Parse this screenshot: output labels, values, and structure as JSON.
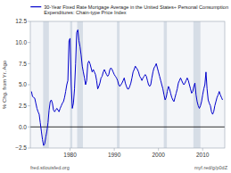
{
  "chart_data": {
    "type": "line",
    "ylabel": "% Chg. from Yr. Ago",
    "legend": "upper-right",
    "grid": false,
    "xlim": [
      1971,
      2015
    ],
    "xticks": [
      1980,
      1990,
      2000,
      2010
    ],
    "ylim": [
      -2.5,
      12.5
    ],
    "yticks": [
      {
        "value": -2.5,
        "label": "−2.5"
      },
      {
        "value": 0.0,
        "label": "0.0"
      },
      2.5,
      {
        "value": 5.0,
        "label": "5.0"
      },
      7.5,
      {
        "value": 10.0,
        "label": "10.0"
      },
      12.5
    ],
    "hlines": [
      0
    ],
    "recession_bands": [
      [
        1973.9,
        1975.2
      ],
      [
        1980.0,
        1980.5
      ],
      [
        1981.6,
        1982.9
      ],
      [
        1990.6,
        1991.2
      ],
      [
        2001.2,
        2001.9
      ],
      [
        2007.9,
        2009.5
      ]
    ],
    "annotations": [
      "fred.stlouisfed.org",
      "myf.red/g/p0dZ"
    ],
    "x": [
      1971.25,
      1971.5,
      1971.75,
      1972.0,
      1972.25,
      1972.5,
      1972.75,
      1973.0,
      1973.25,
      1973.5,
      1973.75,
      1974.0,
      1974.25,
      1974.5,
      1974.75,
      1975.0,
      1975.25,
      1975.5,
      1975.75,
      1976.0,
      1976.25,
      1976.5,
      1976.75,
      1977.0,
      1977.25,
      1977.5,
      1977.75,
      1978.0,
      1978.25,
      1978.5,
      1978.75,
      1979.0,
      1979.25,
      1979.5,
      1979.75,
      1980.0,
      1980.25,
      1980.5,
      1980.75,
      1981.0,
      1981.25,
      1981.5,
      1981.75,
      1982.0,
      1982.25,
      1982.5,
      1982.75,
      1983.0,
      1983.25,
      1983.5,
      1983.75,
      1984.0,
      1984.25,
      1984.5,
      1984.75,
      1985.0,
      1985.25,
      1985.5,
      1985.75,
      1986.0,
      1986.25,
      1986.5,
      1986.75,
      1987.0,
      1987.25,
      1987.5,
      1987.75,
      1988.0,
      1988.25,
      1988.5,
      1988.75,
      1989.0,
      1989.25,
      1989.5,
      1989.75,
      1990.0,
      1990.25,
      1990.5,
      1990.75,
      1991.0,
      1991.25,
      1991.5,
      1991.75,
      1992.0,
      1992.25,
      1992.5,
      1992.75,
      1993.0,
      1993.25,
      1993.5,
      1993.75,
      1994.0,
      1994.25,
      1994.5,
      1994.75,
      1995.0,
      1995.25,
      1995.5,
      1995.75,
      1996.0,
      1996.25,
      1996.5,
      1996.75,
      1997.0,
      1997.25,
      1997.5,
      1997.75,
      1998.0,
      1998.25,
      1998.5,
      1998.75,
      1999.0,
      1999.25,
      1999.5,
      1999.75,
      2000.0,
      2000.25,
      2000.5,
      2000.75,
      2001.0,
      2001.25,
      2001.5,
      2001.75,
      2002.0,
      2002.25,
      2002.5,
      2002.75,
      2003.0,
      2003.25,
      2003.5,
      2003.75,
      2004.0,
      2004.25,
      2004.5,
      2004.75,
      2005.0,
      2005.25,
      2005.5,
      2005.75,
      2006.0,
      2006.25,
      2006.5,
      2006.75,
      2007.0,
      2007.25,
      2007.5,
      2007.75,
      2008.0,
      2008.25,
      2008.5,
      2008.75,
      2009.0,
      2009.25,
      2009.5,
      2009.75,
      2010.0,
      2010.25,
      2010.5,
      2010.75,
      2011.0,
      2011.25,
      2011.5,
      2011.75,
      2012.0,
      2012.25,
      2012.5,
      2012.75,
      2013.0,
      2013.25,
      2013.5,
      2013.75,
      2014.0,
      2014.25,
      2014.5
    ],
    "series": [
      {
        "name": "30-Year Fixed Rate Mortgage Average in the United States÷ Personal Consumption\nExpenditures: Chain-type Price Index",
        "color": "#0000cc",
        "values": [
          4.2,
          3.6,
          3.5,
          3.4,
          2.8,
          2.2,
          1.8,
          1.5,
          0.5,
          -0.5,
          -1.5,
          -2.2,
          -2.0,
          -1.2,
          -0.5,
          0.5,
          2.0,
          3.0,
          3.2,
          2.8,
          2.0,
          1.8,
          2.0,
          2.2,
          2.0,
          1.8,
          2.2,
          2.5,
          2.8,
          3.0,
          3.5,
          4.2,
          5.0,
          5.5,
          10.2,
          10.5,
          5.0,
          2.2,
          2.8,
          4.5,
          7.5,
          11.2,
          11.5,
          10.2,
          9.5,
          8.5,
          7.2,
          6.5,
          5.8,
          5.0,
          5.5,
          7.5,
          7.8,
          7.5,
          7.0,
          6.5,
          6.8,
          6.5,
          6.2,
          5.5,
          4.5,
          4.8,
          5.2,
          5.8,
          6.0,
          6.5,
          6.8,
          6.5,
          6.2,
          6.0,
          6.2,
          6.8,
          7.0,
          6.8,
          6.5,
          6.2,
          6.0,
          5.8,
          5.5,
          5.0,
          4.8,
          5.0,
          5.2,
          5.5,
          5.8,
          5.2,
          4.8,
          4.5,
          4.5,
          4.8,
          5.2,
          5.8,
          6.5,
          6.8,
          7.2,
          7.0,
          6.8,
          6.5,
          6.0,
          5.8,
          5.5,
          5.8,
          6.0,
          6.2,
          6.0,
          5.5,
          5.0,
          4.8,
          5.0,
          5.8,
          6.5,
          7.0,
          7.2,
          7.5,
          7.0,
          6.5,
          6.0,
          5.5,
          5.0,
          4.5,
          3.8,
          3.2,
          3.5,
          4.2,
          4.8,
          4.5,
          4.0,
          3.5,
          3.2,
          3.0,
          3.5,
          4.0,
          4.5,
          5.2,
          5.5,
          5.8,
          5.5,
          5.2,
          5.0,
          5.2,
          5.5,
          5.8,
          5.5,
          5.0,
          4.5,
          4.0,
          4.2,
          4.8,
          5.2,
          3.8,
          3.0,
          2.5,
          2.2,
          2.5,
          3.0,
          3.8,
          4.5,
          5.0,
          6.5,
          4.5,
          3.2,
          2.8,
          2.5,
          1.8,
          1.5,
          1.8,
          2.5,
          3.0,
          3.5,
          3.8,
          4.2,
          3.8,
          3.5,
          3.2
        ]
      }
    ]
  }
}
